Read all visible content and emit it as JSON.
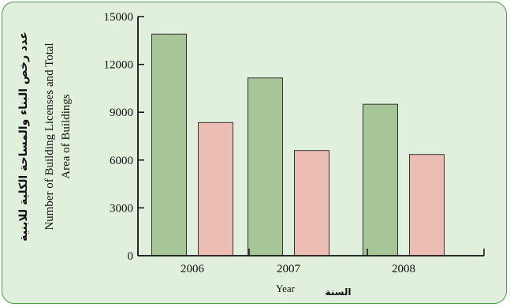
{
  "chart_data": {
    "type": "bar",
    "categories": [
      "2006",
      "2007",
      "2008"
    ],
    "series": [
      {
        "values": [
          13900,
          11150,
          9500
        ],
        "color": "#a6c697"
      },
      {
        "values": [
          8350,
          6600,
          6350
        ],
        "color": "#ecbdb2"
      }
    ],
    "y_ticks": [
      "0",
      "3000",
      "6000",
      "9000",
      "12000",
      "15000"
    ],
    "ylim": [
      0,
      15000
    ],
    "ylabel_ar": "عدد رخص البناء والمساحة الكلية للابنية",
    "ylabel_en_line1": "Number of Building Licenses and Total",
    "ylabel_en_line2": "Area of Buildings",
    "xlabel_en": "Year",
    "xlabel_ar": "السنة",
    "grid": false,
    "legend": "none"
  },
  "colors": {
    "background": "#e1f0dc",
    "border": "#4f9a45",
    "bar_stroke": "#333333"
  }
}
